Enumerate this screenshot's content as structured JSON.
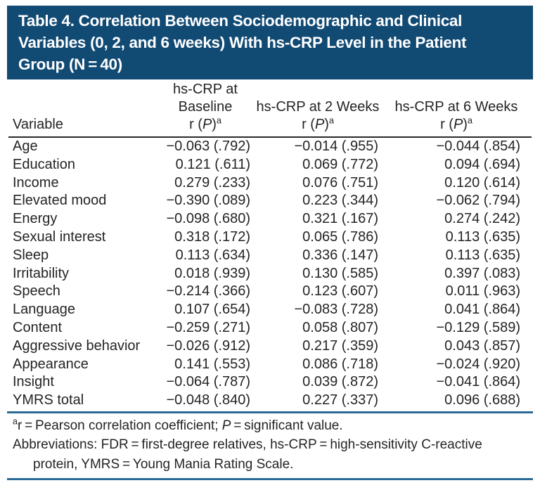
{
  "colors": {
    "title_background": "#114a73",
    "title_text": "#ffffff",
    "header_rule": "#2a2a2a",
    "blue_rule": "#2a6a96",
    "body_text": "#262323"
  },
  "header": {
    "title_lines": [
      "Table 4. Correlation Between Sociodemographic and Clinical",
      "Variables (0, 2, and 6 weeks) With hs-CRP Level in the Patient",
      "Group (N = 40)"
    ]
  },
  "table": {
    "variable_header": "Variable",
    "stat_label": {
      "prefix": "r (",
      "p": "P",
      "suffix": ")",
      "sup": "a"
    },
    "columns": [
      {
        "id": "baseline",
        "lines": [
          "hs-CRP at",
          "Baseline"
        ]
      },
      {
        "id": "week2",
        "lines": [
          "hs-CRP at 2 Weeks"
        ]
      },
      {
        "id": "week6",
        "lines": [
          "hs-CRP at 6 Weeks"
        ]
      }
    ],
    "rows": [
      {
        "variable": "Age",
        "baseline": "−0.063 (.792)",
        "week2": "−0.014 (.955)",
        "week6": "−0.044 (.854)"
      },
      {
        "variable": "Education",
        "baseline": "0.121 (.611)",
        "week2": "0.069 (.772)",
        "week6": "0.094 (.694)"
      },
      {
        "variable": "Income",
        "baseline": "0.279 (.233)",
        "week2": "0.076 (.751)",
        "week6": "0.120 (.614)"
      },
      {
        "variable": "Elevated mood",
        "baseline": "−0.390 (.089)",
        "week2": "0.223 (.344)",
        "week6": "−0.062 (.794)"
      },
      {
        "variable": "Energy",
        "baseline": "−0.098 (.680)",
        "week2": "0.321 (.167)",
        "week6": "0.274 (.242)"
      },
      {
        "variable": "Sexual interest",
        "baseline": "0.318 (.172)",
        "week2": "0.065 (.786)",
        "week6": "0.113 (.635)"
      },
      {
        "variable": "Sleep",
        "baseline": "0.113 (.634)",
        "week2": "0.336 (.147)",
        "week6": "0.113 (.635)"
      },
      {
        "variable": "Irritability",
        "baseline": "0.018 (.939)",
        "week2": "0.130 (.585)",
        "week6": "0.397 (.083)"
      },
      {
        "variable": "Speech",
        "baseline": "−0.214 (.366)",
        "week2": "0.123 (.607)",
        "week6": "0.011 (.963)"
      },
      {
        "variable": "Language",
        "baseline": "0.107 (.654)",
        "week2": "−0.083 (.728)",
        "week6": "0.041 (.864)"
      },
      {
        "variable": "Content",
        "baseline": "−0.259 (.271)",
        "week2": "0.058 (.807)",
        "week6": "−0.129 (.589)"
      },
      {
        "variable": "Aggressive behavior",
        "baseline": "−0.026 (.912)",
        "week2": "0.217 (.359)",
        "week6": "0.043 (.857)"
      },
      {
        "variable": "Appearance",
        "baseline": "0.141 (.553)",
        "week2": "0.086 (.718)",
        "week6": "−0.024 (.920)"
      },
      {
        "variable": "Insight",
        "baseline": "−0.064 (.787)",
        "week2": "0.039 (.872)",
        "week6": "−0.041 (.864)"
      },
      {
        "variable": "YMRS total",
        "baseline": "−0.048 (.840)",
        "week2": "0.227 (.337)",
        "week6": "0.096 (.688)"
      }
    ]
  },
  "footnotes": {
    "note1": {
      "sup": "a",
      "text_before_p": "r = Pearson correlation coefficient; ",
      "p": "P",
      "text_after_p": " = significant value."
    },
    "note2": "Abbreviations: FDR = first-degree relatives, hs-CRP = high-sensitivity C-reactive protein, YMRS = Young Mania Rating Scale."
  }
}
